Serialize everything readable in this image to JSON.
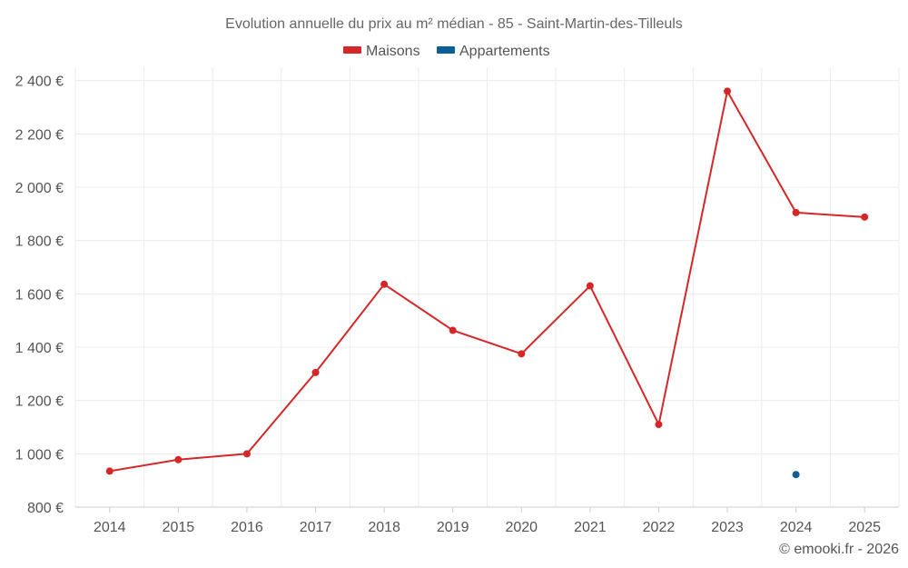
{
  "chart_data": {
    "type": "line",
    "title": "Evolution annuelle du prix au m² médian - 85 - Saint-Martin-des-Tilleuls",
    "categories": [
      "2014",
      "2015",
      "2016",
      "2017",
      "2018",
      "2019",
      "2020",
      "2021",
      "2022",
      "2023",
      "2024",
      "2025"
    ],
    "series": [
      {
        "name": "Maisons",
        "color": "#d62728",
        "values": [
          935,
          978,
          1000,
          1305,
          1636,
          1463,
          1375,
          1630,
          1110,
          2360,
          1905,
          1888
        ]
      },
      {
        "name": "Appartements",
        "color": "#0b5f97",
        "values": [
          null,
          null,
          null,
          null,
          null,
          null,
          null,
          null,
          null,
          null,
          922,
          null
        ]
      }
    ],
    "ylim": [
      800,
      2450
    ],
    "yticks": [
      800,
      1000,
      1200,
      1400,
      1600,
      1800,
      2000,
      2200,
      2400
    ],
    "ytick_labels": [
      "800 €",
      "1 000 €",
      "1 200 €",
      "1 400 €",
      "1 600 €",
      "1 800 €",
      "2 000 €",
      "2 200 €",
      "2 400 €"
    ],
    "xlabel": "",
    "ylabel": "",
    "grid": true,
    "legend_position": "top-center"
  },
  "credit": "© emooki.fr - 2026"
}
